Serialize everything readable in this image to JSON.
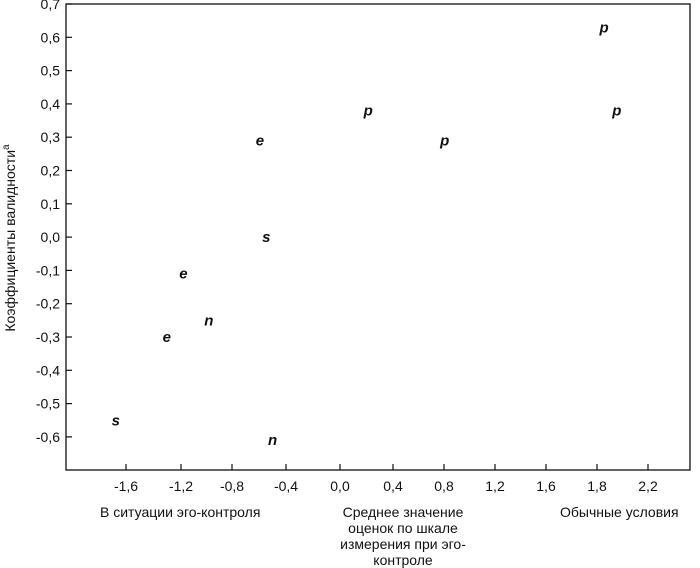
{
  "chart_data": {
    "type": "scatter",
    "ylabel": "Коэффициенты валидности",
    "ylabel_sup": "a",
    "xlabel": "Среднее значение оценок по шкале измерения при эго-контроле",
    "x_tick_labels": [
      "-1,6",
      "-1,2",
      "-0,8",
      "-0,4",
      "0,0",
      "0,4",
      "0,8",
      "1,2",
      "1,6",
      "1,8",
      "2,2"
    ],
    "y_tick_labels": [
      "0,7",
      "0,6",
      "0,5",
      "0,4",
      "0,3",
      "0,2",
      "0,1",
      "0,0",
      "-0,1",
      "-0,2",
      "-0,3",
      "-0,4",
      "-0,5",
      "-0,6"
    ],
    "ylim": [
      -0.7,
      0.7
    ],
    "grid": false,
    "points": [
      {
        "label": "p",
        "x": 2.15,
        "y": 0.63
      },
      {
        "label": "p",
        "x": 2.25,
        "y": 0.38
      },
      {
        "label": "p",
        "x": 0.3,
        "y": 0.38
      },
      {
        "label": "p",
        "x": 0.9,
        "y": 0.29
      },
      {
        "label": "e",
        "x": -0.55,
        "y": 0.29
      },
      {
        "label": "s",
        "x": -0.5,
        "y": 0.0
      },
      {
        "label": "e",
        "x": -1.15,
        "y": -0.11
      },
      {
        "label": "n",
        "x": -0.95,
        "y": -0.25
      },
      {
        "label": "e",
        "x": -1.28,
        "y": -0.3
      },
      {
        "label": "s",
        "x": -1.68,
        "y": -0.55
      },
      {
        "label": "n",
        "x": -0.45,
        "y": -0.61
      }
    ]
  },
  "footer": {
    "left": "В ситуации эго-контроля",
    "middle": "Среднее значение оценок по шкале измерения при эго-контроле",
    "right": "Обычные условия"
  }
}
